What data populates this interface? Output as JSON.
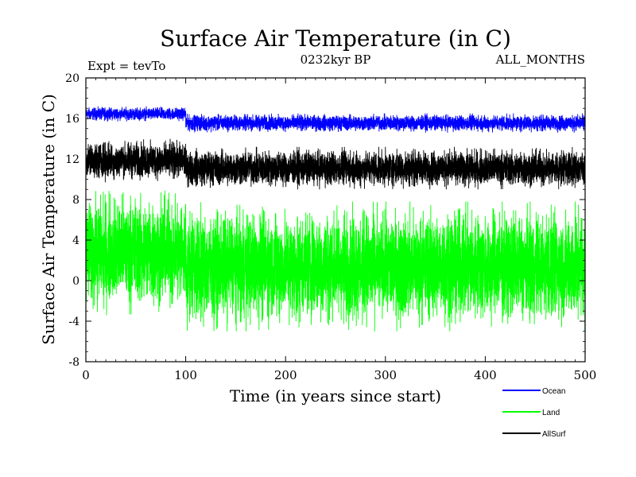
{
  "chart_data": {
    "type": "line",
    "title": "Surface Air Temperature (in C)",
    "subtitle_left": "Expt = tevTo",
    "subtitle_center": "0232kyr BP",
    "subtitle_right": "ALL_MONTHS",
    "xlabel": "Time (in years since start)",
    "ylabel": "Surface Air Temperature (in C)",
    "xlim": [
      0,
      500
    ],
    "ylim": [
      -8,
      20
    ],
    "xticks": [
      0,
      100,
      200,
      300,
      400,
      500
    ],
    "yticks": [
      -8,
      -4,
      0,
      4,
      8,
      12,
      16,
      20
    ],
    "grid": false,
    "legend_position": "bottom-right",
    "series": [
      {
        "name": "Ocean",
        "color": "#0000ff",
        "segments": [
          {
            "x_start": 0,
            "x_end": 100,
            "min": 15.7,
            "max": 17.2,
            "mean": 16.4
          },
          {
            "x_start": 100,
            "x_end": 500,
            "min": 14.6,
            "max": 16.5,
            "mean": 15.5
          }
        ]
      },
      {
        "name": "Land",
        "color": "#00ff00",
        "segments": [
          {
            "x_start": 0,
            "x_end": 100,
            "min": -3.4,
            "max": 9.2,
            "mean": 2.8
          },
          {
            "x_start": 100,
            "x_end": 500,
            "min": -5.0,
            "max": 7.8,
            "mean": 1.3
          }
        ]
      },
      {
        "name": "AllSurf",
        "color": "#000000",
        "segments": [
          {
            "x_start": 0,
            "x_end": 100,
            "min": 9.7,
            "max": 14.0,
            "mean": 11.8
          },
          {
            "x_start": 100,
            "x_end": 500,
            "min": 9.0,
            "max": 13.2,
            "mean": 11.0
          }
        ]
      }
    ]
  }
}
